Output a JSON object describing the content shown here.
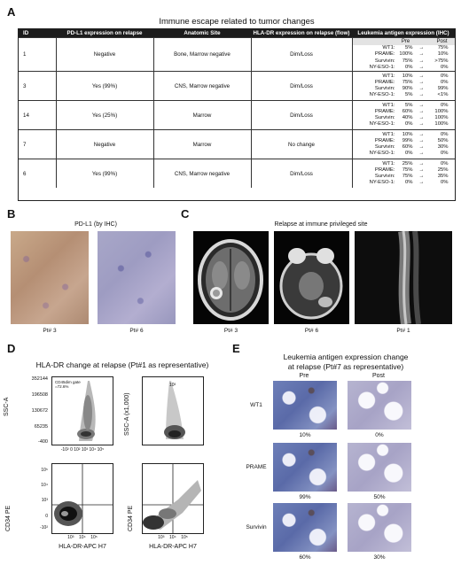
{
  "panel_labels": {
    "a": "A",
    "b": "B",
    "c": "C",
    "d": "D",
    "e": "E"
  },
  "panel_a": {
    "title": "Immune escape related to tumor changes",
    "headers": [
      "ID",
      "PD-L1 expression on relapse",
      "Anatomic Site",
      "HLA-DR expression on relapse (flow)",
      "Leukemia antigen expression (IHC)"
    ],
    "pre_label": "Pre",
    "post_label": "Post",
    "arrow": "→",
    "rows": [
      {
        "id": "1",
        "pdl1": "Negative",
        "site": "Bone, Marrow negative",
        "hla": "Dim/Loss",
        "antigens": [
          {
            "name": "WT1:",
            "pre": "5%",
            "post": "75%"
          },
          {
            "name": "PRAME:",
            "pre": "100%",
            "post": "10%"
          },
          {
            "name": "Survivin:",
            "pre": "75%",
            "post": ">75%"
          },
          {
            "name": "NY-ESO-1:",
            "pre": "0%",
            "post": "0%"
          }
        ]
      },
      {
        "id": "3",
        "pdl1": "Yes (99%)",
        "site": "CNS, Marrow negative",
        "hla": "Dim/Loss",
        "antigens": [
          {
            "name": "WT1:",
            "pre": "10%",
            "post": "0%"
          },
          {
            "name": "PRAME:",
            "pre": "75%",
            "post": "0%"
          },
          {
            "name": "Survivin:",
            "pre": "90%",
            "post": "99%"
          },
          {
            "name": "NY-ESO-1:",
            "pre": "5%",
            "post": "<1%"
          }
        ]
      },
      {
        "id": "14",
        "pdl1": "Yes (25%)",
        "site": "Marrow",
        "hla": "Dim/Loss",
        "antigens": [
          {
            "name": "WT1:",
            "pre": "5%",
            "post": "0%"
          },
          {
            "name": "PRAME:",
            "pre": "60%",
            "post": "100%"
          },
          {
            "name": "Survivin:",
            "pre": "40%",
            "post": "100%"
          },
          {
            "name": "NY-ESO-1:",
            "pre": "0%",
            "post": "100%"
          }
        ]
      },
      {
        "id": "7",
        "pdl1": "Negative",
        "site": "Marrow",
        "hla": "No change",
        "antigens": [
          {
            "name": "WT1:",
            "pre": "10%",
            "post": "0%"
          },
          {
            "name": "PRAME:",
            "pre": "99%",
            "post": "50%"
          },
          {
            "name": "Survivin:",
            "pre": "60%",
            "post": "30%"
          },
          {
            "name": "NY-ESO-1:",
            "pre": "0%",
            "post": "0%"
          }
        ]
      },
      {
        "id": "6",
        "pdl1": "Yes (99%)",
        "site": "CNS, Marrow negative",
        "hla": "Dim/Loss",
        "antigens": [
          {
            "name": "WT1:",
            "pre": "25%",
            "post": "0%"
          },
          {
            "name": "PRAME:",
            "pre": "75%",
            "post": "25%"
          },
          {
            "name": "Survivin:",
            "pre": "75%",
            "post": "35%"
          },
          {
            "name": "NY-ESO-1:",
            "pre": "0%",
            "post": "0%"
          }
        ]
      }
    ]
  },
  "panel_b": {
    "title": "PD-L1 (by IHC)",
    "captions": [
      "Pt# 3",
      "Pt# 6"
    ]
  },
  "panel_c": {
    "title": "Relapse at immune privileged site",
    "captions": [
      "Pt# 3",
      "Pt# 6",
      "Pt# 1"
    ]
  },
  "panel_d": {
    "title": "HLA-DR change at relapse  (Pt#1 as representative)",
    "gate_label": "CD45dim gate\n=72.6%",
    "ssc_label": "SSC-A",
    "ssc_label2": "SSC-A  (x1,000)",
    "cd34_label": "CD34 PE",
    "hla_label": "HLA-DR-APC H7",
    "y_ticks_tl": [
      "352144",
      "196508",
      "130672",
      "65235",
      "-400"
    ],
    "x_ticks_top": [
      "-10²",
      "0",
      "10²",
      "10³",
      "10⁴",
      "10⁵"
    ],
    "y_ticks_bl": [
      "10⁵",
      "10⁴",
      "10³",
      "0",
      "-10²"
    ],
    "x_ticks_bottom": [
      "10³",
      "10⁴",
      "10⁵"
    ],
    "inset_tick": "10³"
  },
  "panel_e": {
    "title_line1": "Leukemia antigen expression change",
    "title_line2": "at relapse (Pt#7 as representative)",
    "pre_label": "Pre",
    "post_label": "Post",
    "rows": [
      {
        "name": "WT1",
        "pre": "10%",
        "post": "0%"
      },
      {
        "name": "PRAME",
        "pre": "99%",
        "post": "50%"
      },
      {
        "name": "Survivin",
        "pre": "60%",
        "post": "30%"
      }
    ]
  }
}
